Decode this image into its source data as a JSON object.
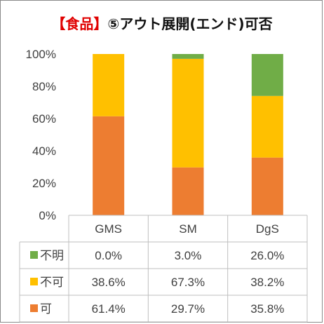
{
  "title": {
    "accent": "【食品】",
    "rest": "⑤アウト展開(エンド)可否"
  },
  "colors": {
    "fumei": "#70ad47",
    "fuka": "#ffc000",
    "ka": "#ed7d31",
    "axis": "#bfbfbf",
    "text": "#404040"
  },
  "chart_data": {
    "type": "bar",
    "stacked": true,
    "normalized": true,
    "categories": [
      "GMS",
      "SM",
      "DgS"
    ],
    "series": [
      {
        "name": "可",
        "values": [
          61.4,
          29.7,
          35.8
        ],
        "labels": [
          "61.4%",
          "29.7%",
          "35.8%"
        ],
        "color": "#ed7d31"
      },
      {
        "name": "不可",
        "values": [
          38.6,
          67.3,
          38.2
        ],
        "labels": [
          "38.6%",
          "67.3%",
          "38.2%"
        ],
        "color": "#ffc000"
      },
      {
        "name": "不明",
        "values": [
          0.0,
          3.0,
          26.0
        ],
        "labels": [
          "0.0%",
          "3.0%",
          "26.0%"
        ],
        "color": "#70ad47"
      }
    ],
    "ylim": [
      0,
      100
    ],
    "yticks": [
      "0%",
      "20%",
      "40%",
      "60%",
      "80%",
      "100%"
    ],
    "grid": false,
    "data_table": true,
    "table_row_order": [
      "不明",
      "不可",
      "可"
    ]
  }
}
